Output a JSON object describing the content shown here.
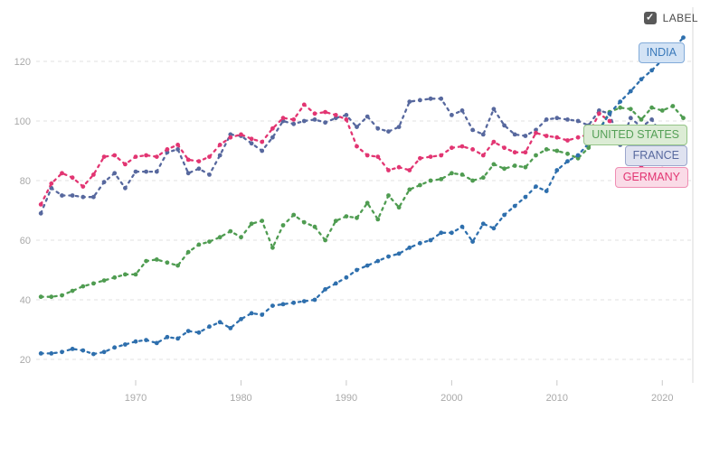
{
  "controls": {
    "label_toggle": {
      "text": "LABEL",
      "checked": true,
      "box_color": "#595959",
      "text_color": "#4a4a4a"
    }
  },
  "chart_data": {
    "type": "line",
    "title": "",
    "xlabel": "",
    "ylabel": "",
    "x_range": [
      1961,
      2022
    ],
    "xticks": [
      1970,
      1980,
      1990,
      2000,
      2010,
      2020
    ],
    "yticks": [
      20,
      40,
      60,
      80,
      100,
      120
    ],
    "grid": "dashed-horizontal",
    "legend_position": "right-edge-pills",
    "line_style": "dashed-with-dot-markers",
    "series": [
      {
        "name": "FRANCE",
        "line_color": "#57689e",
        "pill_bg": "#dfe2f0",
        "pill_border": "#9ba6cc",
        "pill_text_color": "#57689e",
        "values": [
          69,
          77.5,
          75,
          75,
          74.5,
          74.5,
          79.5,
          82.5,
          77.5,
          83,
          83,
          83,
          89.5,
          90.5,
          82.5,
          84,
          82,
          88.5,
          95.5,
          95,
          92.5,
          90,
          94.5,
          100,
          99,
          100,
          100.5,
          99.5,
          101,
          102,
          98,
          101.5,
          97.5,
          96.5,
          98,
          106.5,
          107,
          107.5,
          107.5,
          102,
          103.5,
          97,
          95.5,
          104,
          98.5,
          95.5,
          95,
          97,
          100.5,
          101,
          100.5,
          100,
          98.5,
          103.5,
          102.5,
          92,
          101,
          98,
          100.5,
          95,
          98,
          90.5
        ]
      },
      {
        "name": "GERMANY",
        "line_color": "#e23572",
        "pill_bg": "#fadbe7",
        "pill_border": "#ef8eb3",
        "pill_text_color": "#e23572",
        "values": [
          72,
          79,
          82.5,
          81,
          78,
          82,
          88,
          88.5,
          85.5,
          88,
          88.5,
          88,
          90.5,
          92,
          87,
          86.5,
          88,
          92,
          94.5,
          95.5,
          94,
          93,
          97.5,
          101,
          100.5,
          105.5,
          102.5,
          103,
          102,
          100.5,
          91.5,
          88.5,
          88,
          83.5,
          84.5,
          83.5,
          87.5,
          88,
          88.5,
          91,
          91.5,
          90.5,
          88.5,
          93,
          91,
          89.5,
          89.5,
          96,
          95,
          94.5,
          93.5,
          94.5,
          95.5,
          102.5,
          100,
          95.5,
          92,
          84.5,
          87,
          85.5,
          88,
          92.5
        ]
      },
      {
        "name": "UNITED STATES",
        "line_color": "#4f9c51",
        "pill_bg": "#dcecd5",
        "pill_border": "#94c487",
        "pill_text_color": "#55a057",
        "values": [
          41,
          41,
          41.5,
          43,
          44.5,
          45.5,
          46.5,
          47.5,
          48.5,
          48.5,
          53,
          53.5,
          52.5,
          51.5,
          56,
          58.5,
          59.5,
          61,
          63,
          61,
          65.5,
          66.5,
          57.5,
          65,
          68.5,
          66,
          64.5,
          60,
          66.5,
          68,
          67.5,
          72.5,
          67,
          75,
          71,
          77,
          78.5,
          80,
          80.5,
          82.5,
          82,
          80,
          81,
          85.5,
          84,
          85,
          84.5,
          88.5,
          90.5,
          90,
          89,
          87.5,
          91,
          97,
          103,
          104.5,
          104,
          100.5,
          104.5,
          103.5,
          105,
          101
        ]
      },
      {
        "name": "INDIA",
        "line_color": "#2e6fad",
        "pill_bg": "#d3e3f5",
        "pill_border": "#82abd9",
        "pill_text_color": "#3a79ba",
        "values": [
          22,
          22,
          22.5,
          23.5,
          23,
          21.8,
          22.5,
          24,
          25,
          26,
          26.5,
          25.5,
          27.5,
          27,
          29.5,
          29,
          31,
          32.5,
          30.5,
          33.5,
          35.5,
          35,
          38,
          38.5,
          39,
          39.5,
          40,
          43.5,
          45.5,
          47.5,
          50,
          51.5,
          53,
          54.5,
          55.5,
          57.5,
          59,
          60,
          62.5,
          62.5,
          64.5,
          59.5,
          65.5,
          64,
          68.5,
          71.5,
          74.5,
          78,
          76.5,
          83.5,
          86.5,
          88.5,
          92.5,
          97,
          102.5,
          106.5,
          110,
          114,
          117,
          120.5,
          124,
          128
        ]
      }
    ]
  }
}
